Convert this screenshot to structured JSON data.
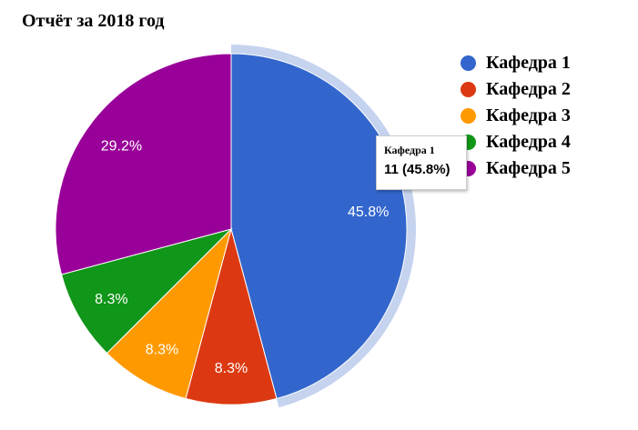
{
  "chart_data": {
    "type": "pie",
    "title": "Отчёт за 2018 год",
    "categories": [
      "Кафедра 1",
      "Кафедра 2",
      "Кафедра 3",
      "Кафедра 4",
      "Кафедра 5"
    ],
    "values": [
      11,
      2,
      2,
      2,
      7
    ],
    "percent_labels": [
      "45.8%",
      "8.3%",
      "8.3%",
      "8.3%",
      "29.2%"
    ],
    "colors": [
      "#3366cc",
      "#dc3912",
      "#ff9900",
      "#109618",
      "#990099"
    ],
    "highlight_color": "#c5d3ef",
    "highlighted_slice": 0,
    "legend_position": "right",
    "tooltip": {
      "title": "Кафедра 1",
      "value": "11 (45.8%)"
    }
  }
}
